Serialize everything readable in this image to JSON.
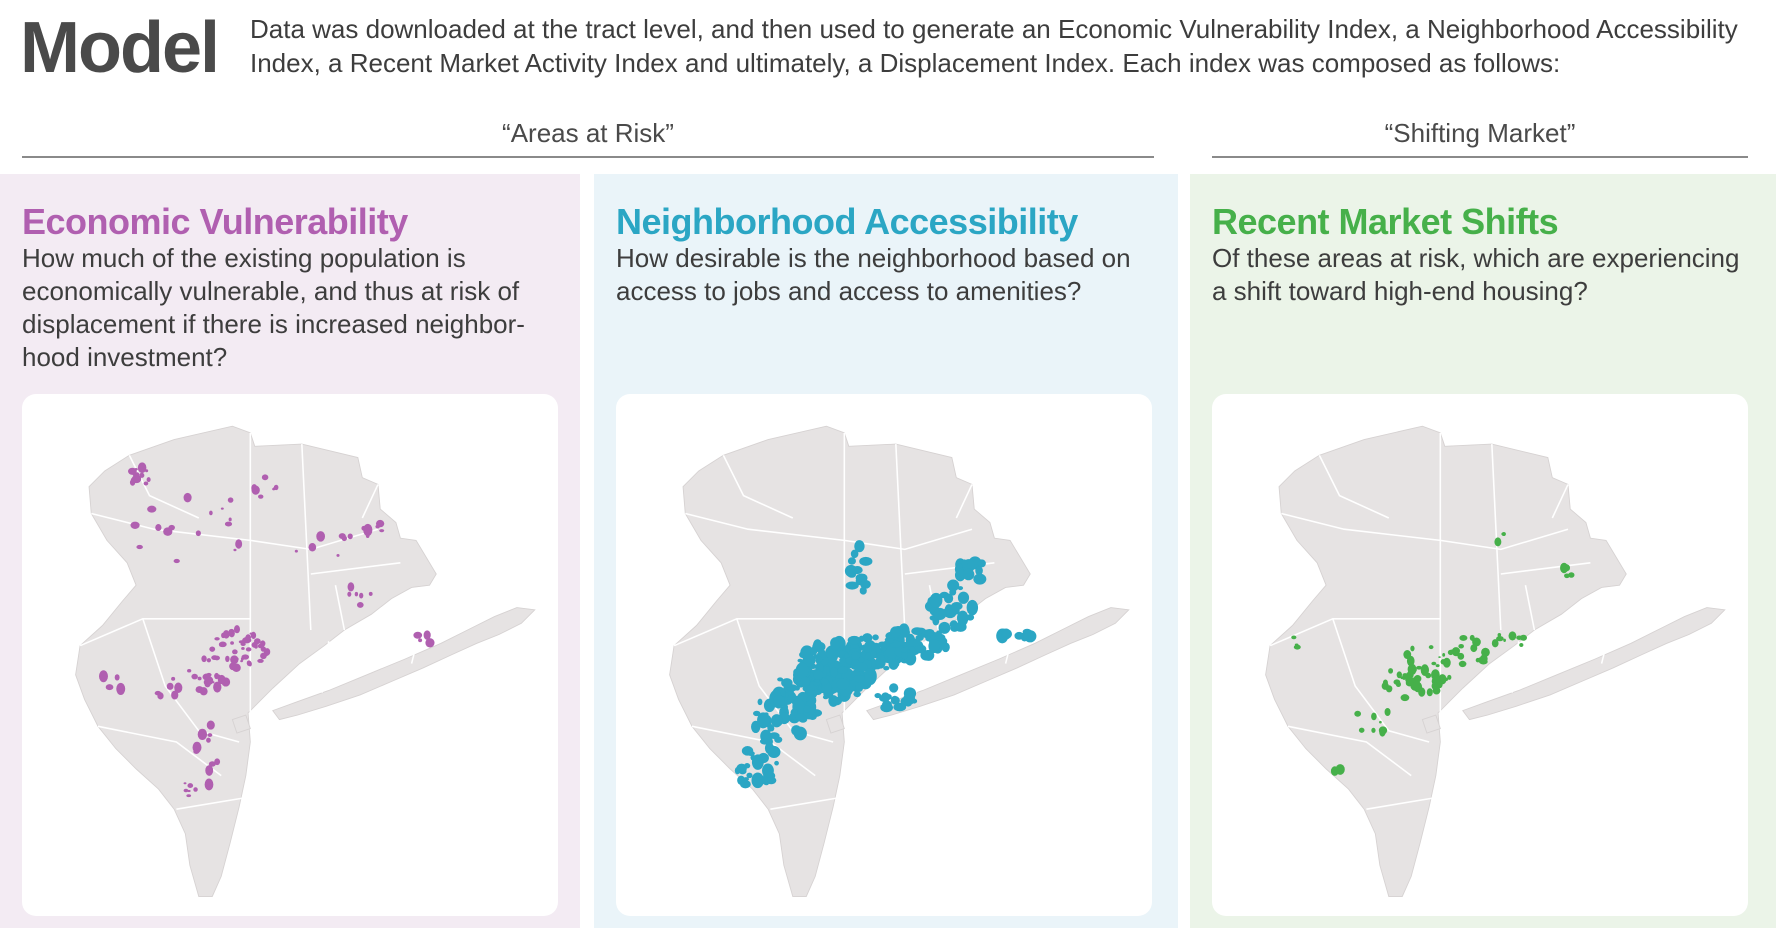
{
  "header": {
    "title": "Model",
    "intro": "Data was downloaded at the tract level, and then used to generate an Economic Vulnerability Index, a Neighborhood Accessibility Index, a Recent Market Activity Index and ultimately, a Displacement Index. Each index was composed as follows:"
  },
  "groups": [
    {
      "label": "“Areas at Risk”"
    },
    {
      "label": "“Shifting Market”"
    }
  ],
  "panels": [
    {
      "title": "Economic Vulnerability",
      "question": "How much of the existing population is economically vulnerable, and thus at risk of displacement if there is increased neighbor-hood investment?",
      "accent": "#b05fb0",
      "background": "#f3ebf3"
    },
    {
      "title": "Neighborhood Accessibility",
      "question": "How desirable is the neighborhood based on access to jobs and access to amenities?",
      "accent": "#2ba6c4",
      "background": "#eaf4f9"
    },
    {
      "title": "Recent Market Shifts",
      "question": "Of these areas at risk, which are experiencing a shift toward high-end housing?",
      "accent": "#46b04a",
      "background": "#ebf4e8"
    }
  ],
  "map": {
    "land_color": "#e6e3e3",
    "border_color": "#ffffff"
  }
}
